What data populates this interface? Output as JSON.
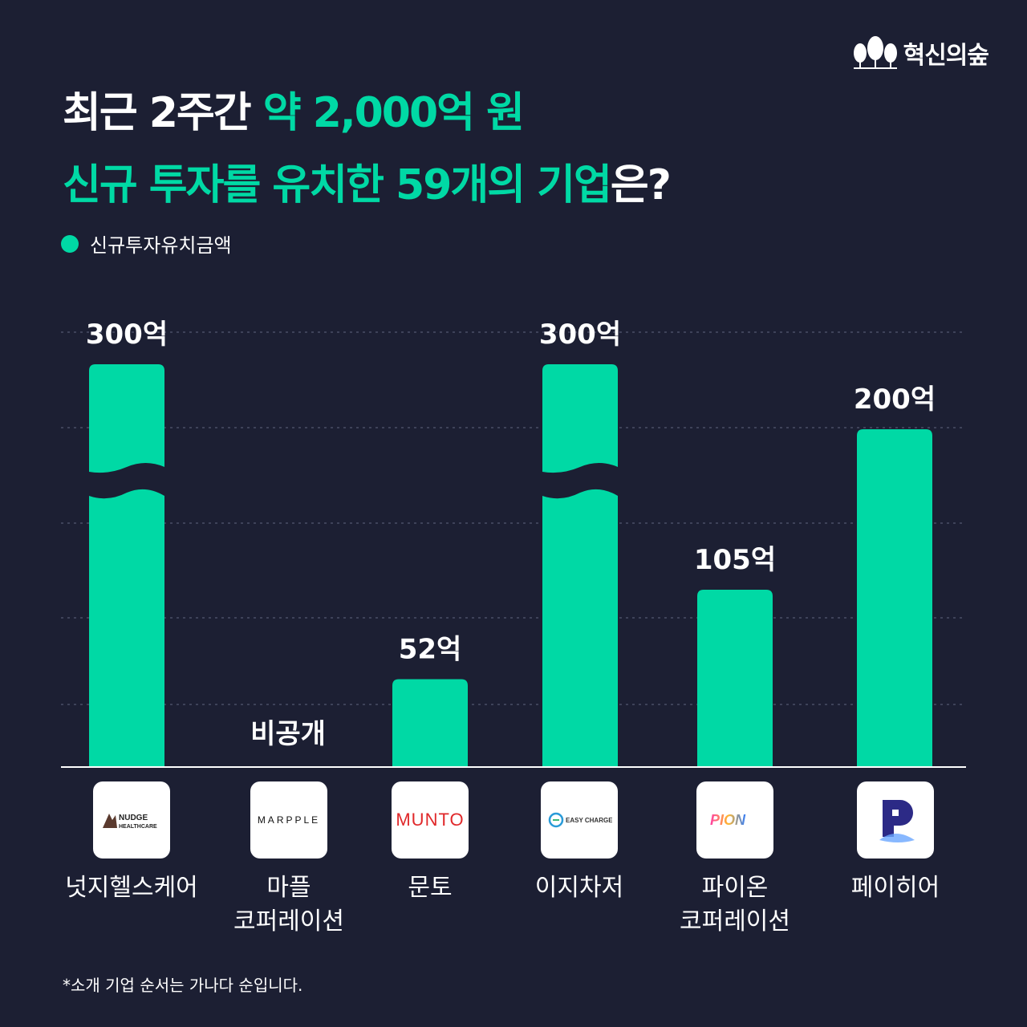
{
  "brand": {
    "name": "혁신의숲",
    "icon": "forest-trees-icon"
  },
  "headline": {
    "line1_white": "최근 2주간 ",
    "line1_green": "약 2,000억 원",
    "line2_green": "신규 투자를 유치한 59개의 기업",
    "line2_white": "은?"
  },
  "colors": {
    "accent": "#00d9a5",
    "background": "#1c1f33"
  },
  "chart_data": {
    "type": "bar",
    "series": [
      {
        "name": "신규투자유치금액",
        "values": [
          300,
          null,
          52,
          300,
          105,
          200
        ]
      }
    ],
    "categories": [
      "넛지헬스케어",
      "마플\n코퍼레이션",
      "문토",
      "이지차저",
      "파이온\n코퍼레이션",
      "페이히어"
    ],
    "data_labels": [
      "300억",
      "비공개",
      "52억",
      "300억",
      "105억",
      "200억"
    ],
    "axis_breaks": [
      0,
      3
    ],
    "grid": true,
    "legend": "top-left"
  },
  "logos": [
    {
      "text": "NUDGE HEALTHCARE",
      "icon": "nudge-healthcare-logo"
    },
    {
      "text": "MARPPLE",
      "icon": "marpple-logo"
    },
    {
      "text": "MUNTO",
      "icon": "munto-logo"
    },
    {
      "text": "EASY CHARGER",
      "icon": "easy-charger-logo"
    },
    {
      "text": "PION",
      "icon": "pion-logo"
    },
    {
      "text": "",
      "icon": "payhere-logo"
    }
  ],
  "footnote": "*소개 기업 순서는 가나다 순입니다."
}
